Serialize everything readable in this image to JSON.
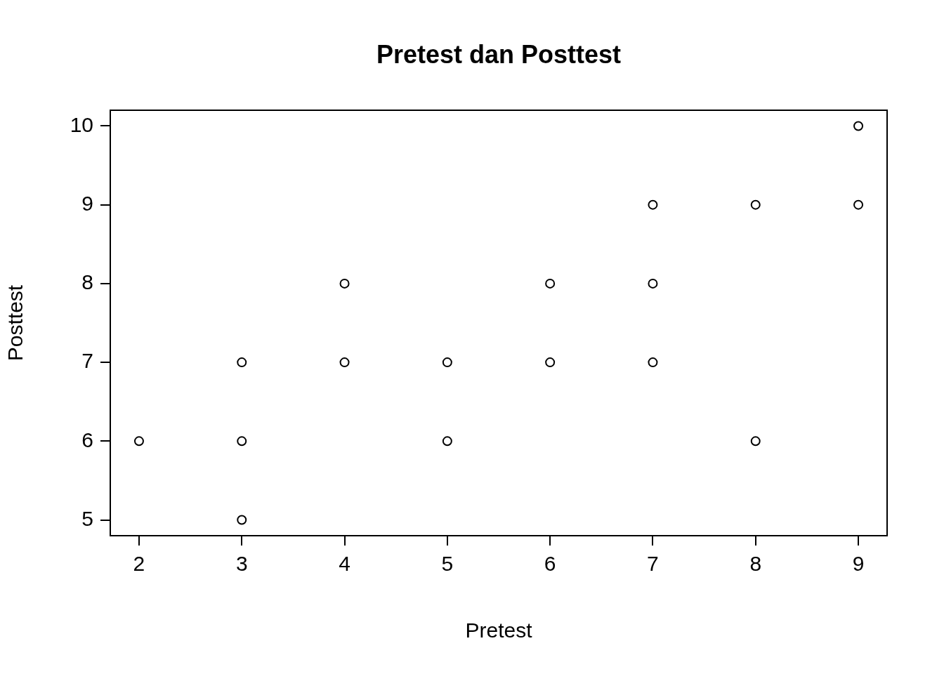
{
  "chart_data": {
    "type": "scatter",
    "title": "Pretest dan Posttest",
    "xlabel": "Pretest",
    "ylabel": "Posttest",
    "x": [
      2,
      3,
      3,
      3,
      4,
      4,
      5,
      5,
      6,
      6,
      7,
      7,
      7,
      8,
      8,
      9,
      9
    ],
    "values": [
      6,
      7,
      6,
      5,
      8,
      7,
      7,
      6,
      8,
      7,
      9,
      8,
      7,
      9,
      6,
      10,
      9
    ],
    "color": "#000000",
    "marker": "circle",
    "xlim": [
      1.72,
      9.28
    ],
    "ylim": [
      4.8,
      10.2
    ],
    "xticks": [
      2,
      3,
      4,
      5,
      6,
      7,
      8,
      9
    ],
    "yticks": [
      5,
      6,
      7,
      8,
      9,
      10
    ]
  }
}
